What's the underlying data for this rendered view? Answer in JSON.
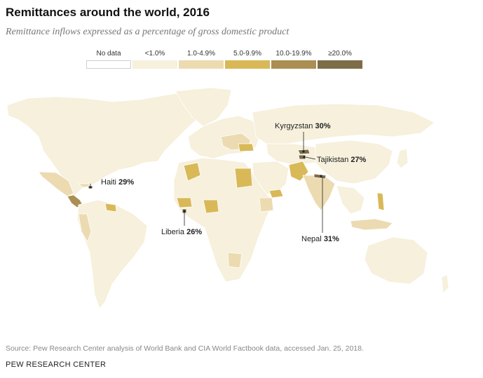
{
  "title": "Remittances around the world, 2016",
  "subtitle": "Remittance inflows expressed as a percentage of gross domestic product",
  "legend": [
    {
      "label": "No data",
      "color": "#ffffff"
    },
    {
      "label": "<1.0%",
      "color": "#f6f0dc"
    },
    {
      "label": "1.0-4.9%",
      "color": "#ecdbb1"
    },
    {
      "label": "5.0-9.9%",
      "color": "#d9b858"
    },
    {
      "label": "10.0-19.9%",
      "color": "#ab8e52"
    },
    {
      "label": "≥20.0%",
      "color": "#7d6c48"
    }
  ],
  "callouts": {
    "kyrgyzstan": {
      "name": "Kyrgyzstan",
      "value": "30%"
    },
    "tajikistan": {
      "name": "Tajikistan",
      "value": "27%"
    },
    "haiti": {
      "name": "Haiti",
      "value": "29%"
    },
    "liberia": {
      "name": "Liberia",
      "value": "26%"
    },
    "nepal": {
      "name": "Nepal",
      "value": "31%"
    }
  },
  "source": "Source: Pew Research Center analysis of World Bank and CIA World Factbook data, accessed Jan. 25, 2018.",
  "credit": "PEW RESEARCH CENTER"
}
